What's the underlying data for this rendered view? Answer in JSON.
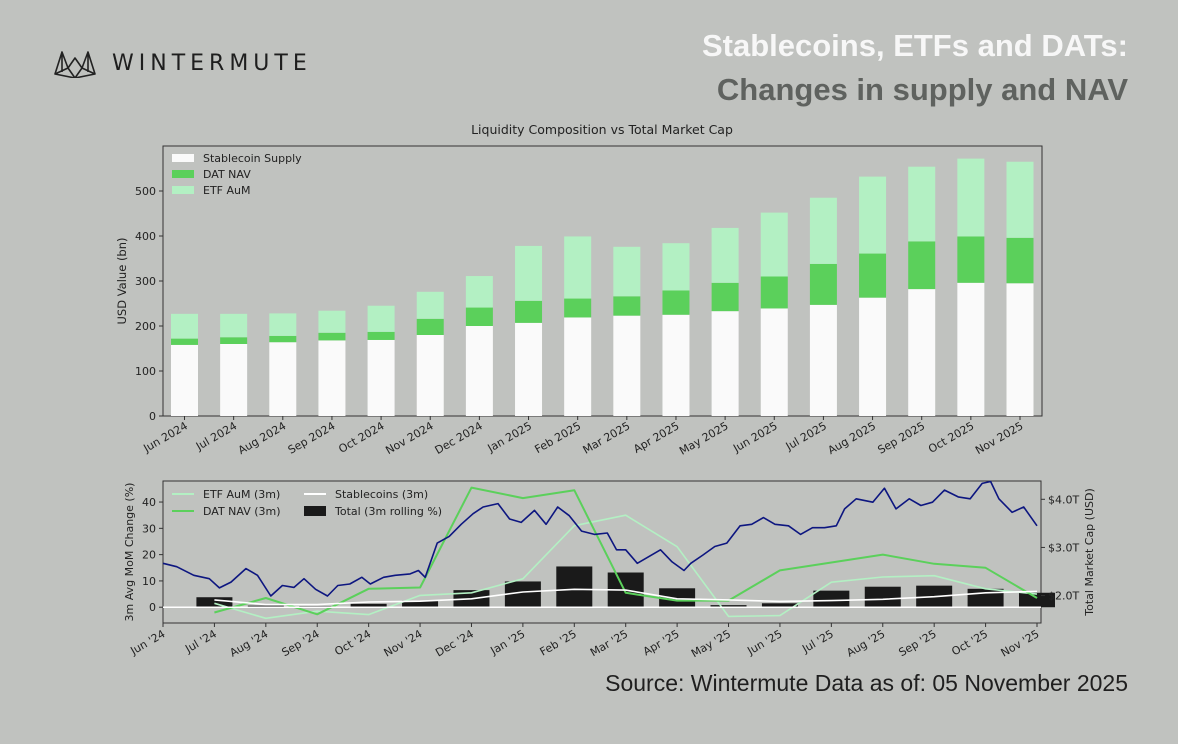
{
  "brand": {
    "name": "WINTERMUTE",
    "logo_icon": "wintermute-logo-icon"
  },
  "header": {
    "title_line1": "Stablecoins, ETFs and DATs:",
    "title_line2": "Changes in supply and NAV"
  },
  "footer": {
    "source": "Source: Wintermute  Data as of: 05 November 2025"
  },
  "colors": {
    "background": "#c0c2bf",
    "stablecoin": "#fafafa",
    "dat": "#5bd05b",
    "etf": "#b3f0c3",
    "market_cap": "#0d1680",
    "total_bar": "#1a1a1a"
  },
  "chart_data": [
    {
      "type": "bar",
      "stacked": true,
      "title": "Liquidity Composition vs Total Market Cap",
      "ylabel": "USD Value (bn)",
      "xlabel": "",
      "ylim": [
        0,
        600
      ],
      "yticks": [
        0,
        100,
        200,
        300,
        400,
        500
      ],
      "grid": false,
      "legend": "top-left",
      "categories": [
        "Jun 2024",
        "Jul 2024",
        "Aug 2024",
        "Sep 2024",
        "Oct 2024",
        "Nov 2024",
        "Dec 2024",
        "Jan 2025",
        "Feb 2025",
        "Mar 2025",
        "Apr 2025",
        "May 2025",
        "Jun 2025",
        "Jul 2025",
        "Aug 2025",
        "Sep 2025",
        "Oct 2025",
        "Nov 2025"
      ],
      "series": [
        {
          "name": "Stablecoin Supply",
          "color": "#fafafa",
          "values": [
            158,
            160,
            164,
            168,
            169,
            180,
            200,
            207,
            219,
            223,
            225,
            233,
            239,
            247,
            263,
            282,
            296,
            295
          ]
        },
        {
          "name": "DAT NAV",
          "color": "#5bd05b",
          "values": [
            14,
            15,
            14,
            17,
            18,
            36,
            41,
            49,
            42,
            43,
            54,
            63,
            71,
            91,
            98,
            106,
            103,
            101
          ]
        },
        {
          "name": "ETF AuM",
          "color": "#b3f0c3",
          "values": [
            55,
            52,
            50,
            49,
            58,
            60,
            70,
            122,
            138,
            110,
            105,
            122,
            142,
            147,
            171,
            166,
            173,
            169
          ]
        }
      ]
    },
    {
      "type": "line",
      "title": "",
      "ylabel": "3m Avg MoM Change (%)",
      "ylabel_right": "Total Market Cap (USD)",
      "ylim": [
        -6,
        48
      ],
      "yticks": [
        0,
        10,
        20,
        30,
        40
      ],
      "ylim_right": [
        1.43,
        4.38
      ],
      "yticks_right": [
        "$2.0T",
        "$3.0T",
        "$4.0T"
      ],
      "yticks_right_values": [
        2.0,
        3.0,
        4.0
      ],
      "grid": false,
      "legend": "top-left",
      "categories": [
        "Jun '24",
        "Jul '24",
        "Aug '24",
        "Sep '24",
        "Oct '24",
        "Nov '24",
        "Dec '24",
        "Jan '25",
        "Feb '25",
        "Mar '25",
        "Apr '25",
        "May '25",
        "Jun '25",
        "Jul '25",
        "Aug '25",
        "Sep '25",
        "Oct '25",
        "Nov '25"
      ],
      "series": [
        {
          "name": "ETF AuM (3m)",
          "kind": "line",
          "color": "#b3f0c3",
          "x": [
            "Jul '24",
            "Aug '24",
            "Sep '24",
            "Oct '24",
            "Nov '24",
            "Dec '24",
            "Jan '25",
            "Feb '25",
            "Mar '25",
            "Apr '25",
            "May '25",
            "Jun '25",
            "Jul '25",
            "Aug '25",
            "Sep '25",
            "Oct '25",
            "Nov '25"
          ],
          "values": [
            1.5,
            -4.2,
            -1.5,
            -2.8,
            4.5,
            5.5,
            10.8,
            31,
            35,
            23,
            -3.5,
            -3.2,
            9.5,
            11.5,
            12,
            7,
            5
          ]
        },
        {
          "name": "DAT NAV (3m)",
          "kind": "line",
          "color": "#5bd05b",
          "x": [
            "Jul '24",
            "Aug '24",
            "Sep '24",
            "Oct '24",
            "Nov '24",
            "Dec '24",
            "Jan '25",
            "Feb '25",
            "Mar '25",
            "Apr '25",
            "May '25",
            "Jun '25",
            "Jul '25",
            "Aug '25",
            "Sep '25",
            "Oct '25",
            "Nov '25"
          ],
          "values": [
            -2,
            3.5,
            -2.7,
            7,
            7.5,
            45.5,
            41.5,
            44.5,
            5.5,
            2.5,
            2.5,
            14,
            17,
            20,
            16.5,
            15,
            3.5
          ]
        },
        {
          "name": "Stablecoins (3m)",
          "kind": "line",
          "color": "#ffffff",
          "x": [
            "Jul '24",
            "Aug '24",
            "Sep '24",
            "Oct '24",
            "Nov '24",
            "Dec '24",
            "Jan '25",
            "Feb '25",
            "Mar '25",
            "Apr '25",
            "May '25",
            "Jun '25",
            "Jul '25",
            "Aug '25",
            "Sep '25",
            "Oct '25",
            "Nov '25"
          ],
          "values": [
            2.8,
            1,
            1,
            2,
            2.3,
            3.2,
            5.8,
            6.8,
            6.5,
            3.2,
            2.8,
            2.2,
            2.5,
            3,
            4,
            5.5,
            6
          ]
        },
        {
          "name": "Total (3m rolling %)",
          "kind": "bar",
          "color": "#1a1a1a",
          "x": [
            "Jul '24",
            "Aug '24",
            "Sep '24",
            "Oct '24",
            "Nov '24",
            "Dec '24",
            "Jan '25",
            "Feb '25",
            "Mar '25",
            "Apr '25",
            "May '25",
            "Jun '25",
            "Jul '25",
            "Aug '25",
            "Sep '25",
            "Oct '25",
            "Nov '25"
          ],
          "values": [
            3.8,
            0.6,
            0.4,
            1.3,
            2.5,
            6.5,
            9.8,
            15.5,
            13.2,
            7.2,
            0.8,
            1.5,
            6.3,
            7.8,
            8.2,
            7.0,
            5.5
          ]
        },
        {
          "name": "",
          "kind": "line",
          "axis": "right",
          "color": "#0d1680",
          "unit": "USD trillions",
          "x": [
            "2024-06-01",
            "2024-06-09",
            "2024-06-19",
            "2024-06-28",
            "2024-07-04",
            "2024-07-11",
            "2024-07-20",
            "2024-07-27",
            "2024-08-04",
            "2024-08-11",
            "2024-08-18",
            "2024-08-24",
            "2024-08-31",
            "2024-09-07",
            "2024-09-13",
            "2024-09-20",
            "2024-09-27",
            "2024-10-02",
            "2024-10-10",
            "2024-10-17",
            "2024-10-26",
            "2024-10-31",
            "2024-11-04",
            "2024-11-11",
            "2024-11-18",
            "2024-11-25",
            "2024-12-02",
            "2024-12-08",
            "2024-12-17",
            "2024-12-24",
            "2024-12-31",
            "2025-01-08",
            "2025-01-15",
            "2025-01-22",
            "2025-01-29",
            "2025-02-05",
            "2025-02-12",
            "2025-02-19",
            "2025-02-24",
            "2025-03-01",
            "2025-03-08",
            "2025-03-15",
            "2025-03-22",
            "2025-03-29",
            "2025-04-05",
            "2025-04-09",
            "2025-04-16",
            "2025-04-23",
            "2025-04-30",
            "2025-05-08",
            "2025-05-15",
            "2025-05-22",
            "2025-05-29",
            "2025-06-06",
            "2025-06-13",
            "2025-06-20",
            "2025-06-27",
            "2025-07-04",
            "2025-07-09",
            "2025-07-16",
            "2025-07-26",
            "2025-08-02",
            "2025-08-09",
            "2025-08-17",
            "2025-08-24",
            "2025-08-31",
            "2025-09-07",
            "2025-09-15",
            "2025-09-22",
            "2025-09-29",
            "2025-10-04",
            "2025-10-09",
            "2025-10-17",
            "2025-10-24",
            "2025-11-01"
          ],
          "values": [
            2.67,
            2.6,
            2.42,
            2.35,
            2.16,
            2.28,
            2.56,
            2.42,
            1.99,
            2.21,
            2.17,
            2.35,
            2.13,
            1.99,
            2.21,
            2.24,
            2.38,
            2.24,
            2.38,
            2.42,
            2.45,
            2.52,
            2.38,
            3.09,
            3.23,
            3.48,
            3.7,
            3.84,
            3.91,
            3.59,
            3.52,
            3.77,
            3.48,
            3.84,
            3.66,
            3.34,
            3.27,
            3.3,
            2.95,
            2.95,
            2.67,
            2.81,
            2.95,
            2.7,
            2.52,
            2.67,
            2.84,
            3.02,
            3.09,
            3.45,
            3.48,
            3.62,
            3.48,
            3.45,
            3.27,
            3.41,
            3.41,
            3.45,
            3.8,
            4.01,
            3.94,
            4.23,
            3.8,
            4.01,
            3.87,
            3.94,
            4.19,
            4.05,
            4.01,
            4.33,
            4.37,
            4.01,
            3.73,
            3.84,
            3.45
          ]
        }
      ]
    }
  ]
}
